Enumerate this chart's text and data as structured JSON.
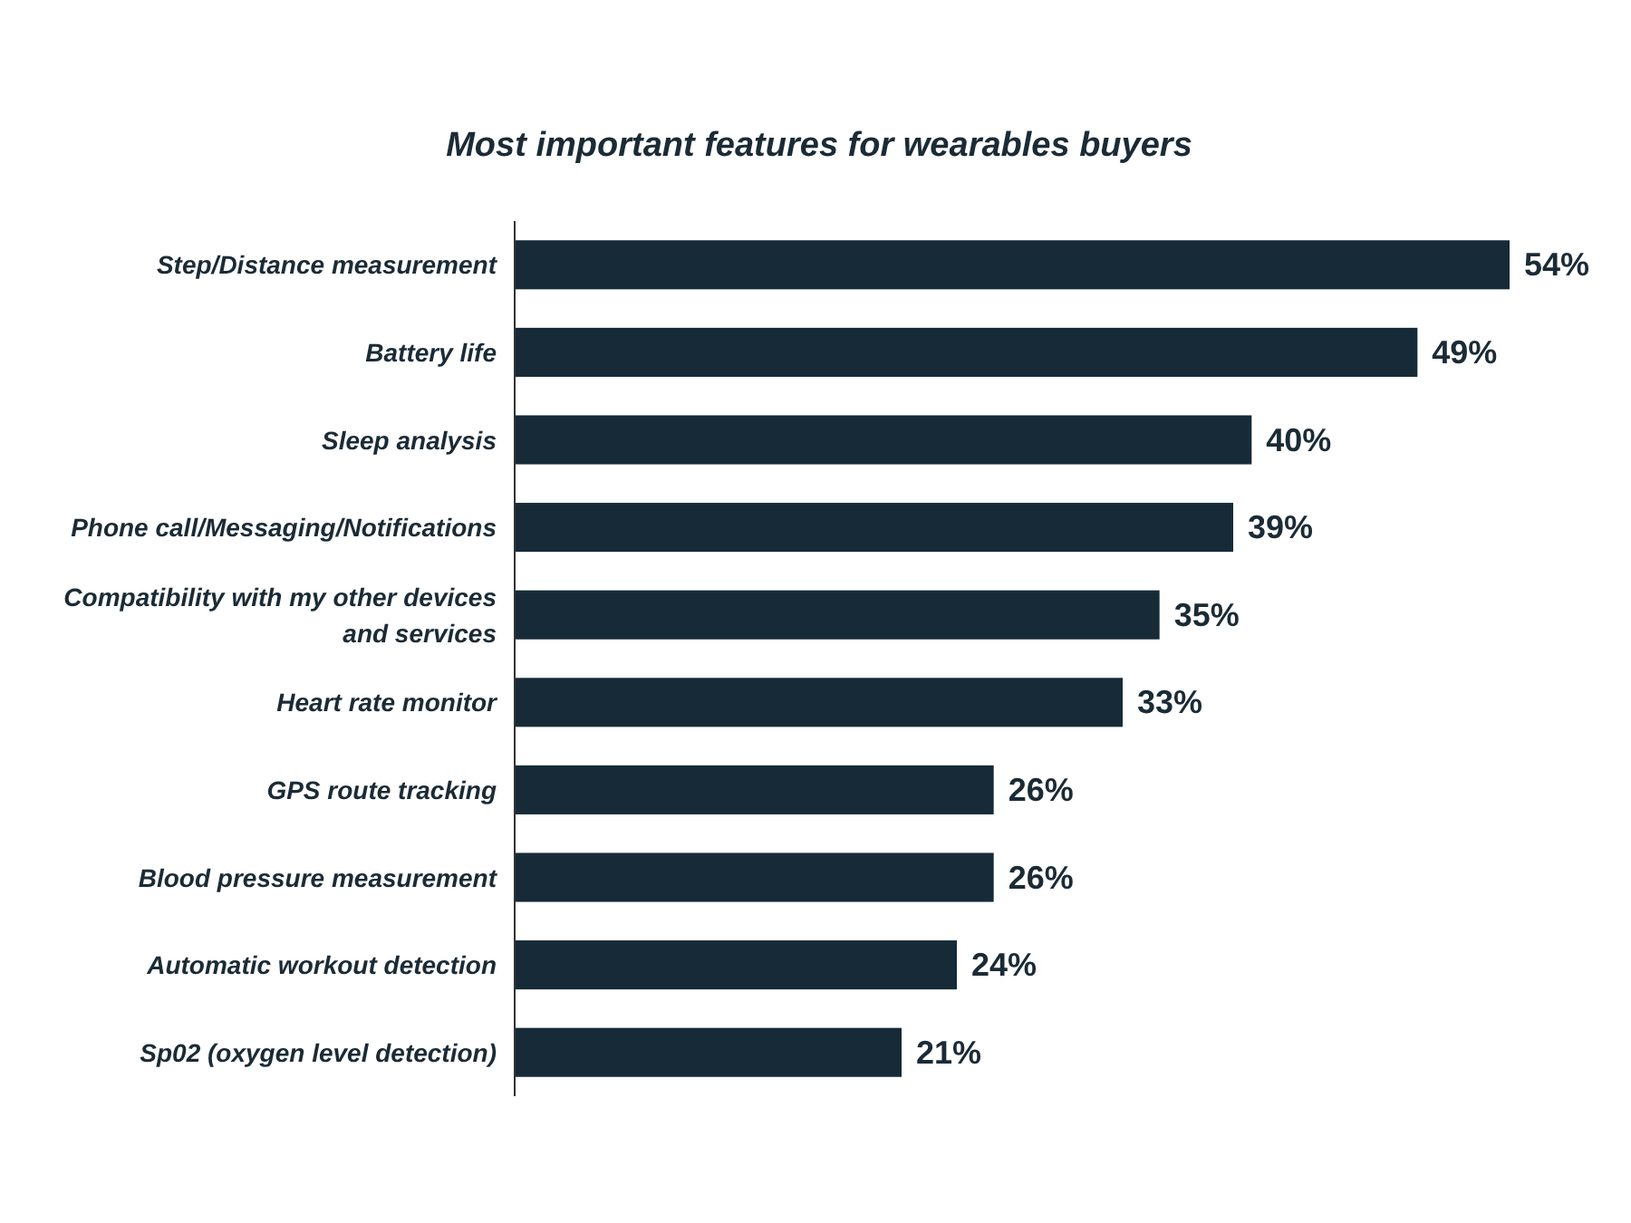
{
  "chart_data": {
    "type": "bar",
    "orientation": "horizontal",
    "title": "Most important features for wearables buyers",
    "categories": [
      "Step/Distance measurement",
      "Battery life",
      "Sleep analysis",
      "Phone call/Messaging/Notifications",
      "Compatibility with my other devices and services",
      "Heart rate monitor",
      "GPS route tracking",
      "Blood pressure measurement",
      "Automatic workout detection",
      "Sp02 (oxygen level detection)"
    ],
    "values": [
      54,
      49,
      40,
      39,
      35,
      33,
      26,
      26,
      24,
      21
    ],
    "value_labels": [
      "54%",
      "49%",
      "40%",
      "39%",
      "35%",
      "33%",
      "26%",
      "26%",
      "24%",
      "21%"
    ],
    "color": "#162a37"
  }
}
